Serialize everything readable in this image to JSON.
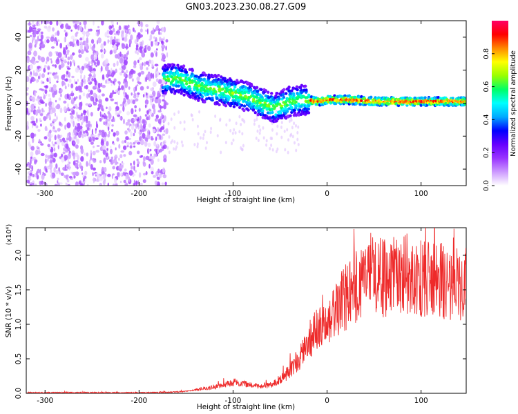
{
  "title": "GN03.2023.230.08.27.G09",
  "colors": {
    "snr_line": "#ee2a2a",
    "colormap": [
      "#ffffff",
      "#cc99ff",
      "#9933ff",
      "#6600ff",
      "#0000ff",
      "#00aaff",
      "#00ffff",
      "#00ff66",
      "#99ff00",
      "#ffff00",
      "#ff8800",
      "#ff0000",
      "#ff0066"
    ]
  },
  "chart_data": [
    {
      "type": "heatmap",
      "title": "",
      "xlabel": "Height of straight line (km)",
      "ylabel": "Frequency (Hz)",
      "xlim": [
        -320,
        148
      ],
      "ylim": [
        -50,
        50
      ],
      "x_ticks": [
        -300,
        -200,
        -100,
        0,
        100
      ],
      "y_ticks": [
        -40,
        -20,
        0,
        20,
        40
      ],
      "colorbar": {
        "label": "Normalized spectral amplitude",
        "range": [
          0,
          1
        ],
        "ticks": [
          "0.0",
          "0.2",
          "0.4",
          "0.6",
          "0.8"
        ]
      },
      "ridge": [
        {
          "x": -175,
          "y": 14
        },
        {
          "x": -160,
          "y": 15
        },
        {
          "x": -145,
          "y": 12
        },
        {
          "x": -130,
          "y": 9
        },
        {
          "x": -115,
          "y": 8
        },
        {
          "x": -100,
          "y": 6
        },
        {
          "x": -85,
          "y": 4
        },
        {
          "x": -70,
          "y": 0
        },
        {
          "x": -55,
          "y": -3
        },
        {
          "x": -40,
          "y": 1
        },
        {
          "x": -25,
          "y": 2
        },
        {
          "x": -10,
          "y": 1
        },
        {
          "x": 0,
          "y": 2
        },
        {
          "x": 25,
          "y": 2
        },
        {
          "x": 50,
          "y": 1
        },
        {
          "x": 75,
          "y": 1
        },
        {
          "x": 100,
          "y": 1
        },
        {
          "x": 125,
          "y": 1
        },
        {
          "x": 148,
          "y": 1
        }
      ]
    },
    {
      "type": "line",
      "title": "",
      "xlabel": "Height of straight line (km)",
      "ylabel": "SNR (10 * v/v)",
      "y_multiplier": "(x10⁴)",
      "xlim": [
        -320,
        148
      ],
      "ylim": [
        0,
        2.4
      ],
      "x_ticks": [
        -300,
        -200,
        -100,
        0,
        100
      ],
      "y_ticks": [
        "0.0",
        "0.5",
        "1.0",
        "1.5",
        "2.0"
      ],
      "series": [
        {
          "x": [
            -320,
            -300,
            -280,
            -260,
            -240,
            -220,
            -200,
            -180,
            -160,
            -150,
            -140,
            -130,
            -120,
            -110,
            -100,
            -90,
            -80,
            -70,
            -60,
            -50,
            -40,
            -30,
            -20,
            -10,
            0,
            10,
            20,
            30,
            40,
            50,
            60,
            70,
            80,
            90,
            100,
            110,
            120,
            130,
            140,
            148
          ],
          "y": [
            0.01,
            0.01,
            0.01,
            0.01,
            0.01,
            0.01,
            0.01,
            0.01,
            0.02,
            0.03,
            0.05,
            0.07,
            0.09,
            0.12,
            0.16,
            0.14,
            0.12,
            0.1,
            0.12,
            0.2,
            0.32,
            0.5,
            0.75,
            0.95,
            1.0,
            1.2,
            1.4,
            1.55,
            1.65,
            1.7,
            1.68,
            1.72,
            1.75,
            1.7,
            1.68,
            1.65,
            1.62,
            1.6,
            1.62,
            1.6
          ]
        }
      ]
    }
  ]
}
